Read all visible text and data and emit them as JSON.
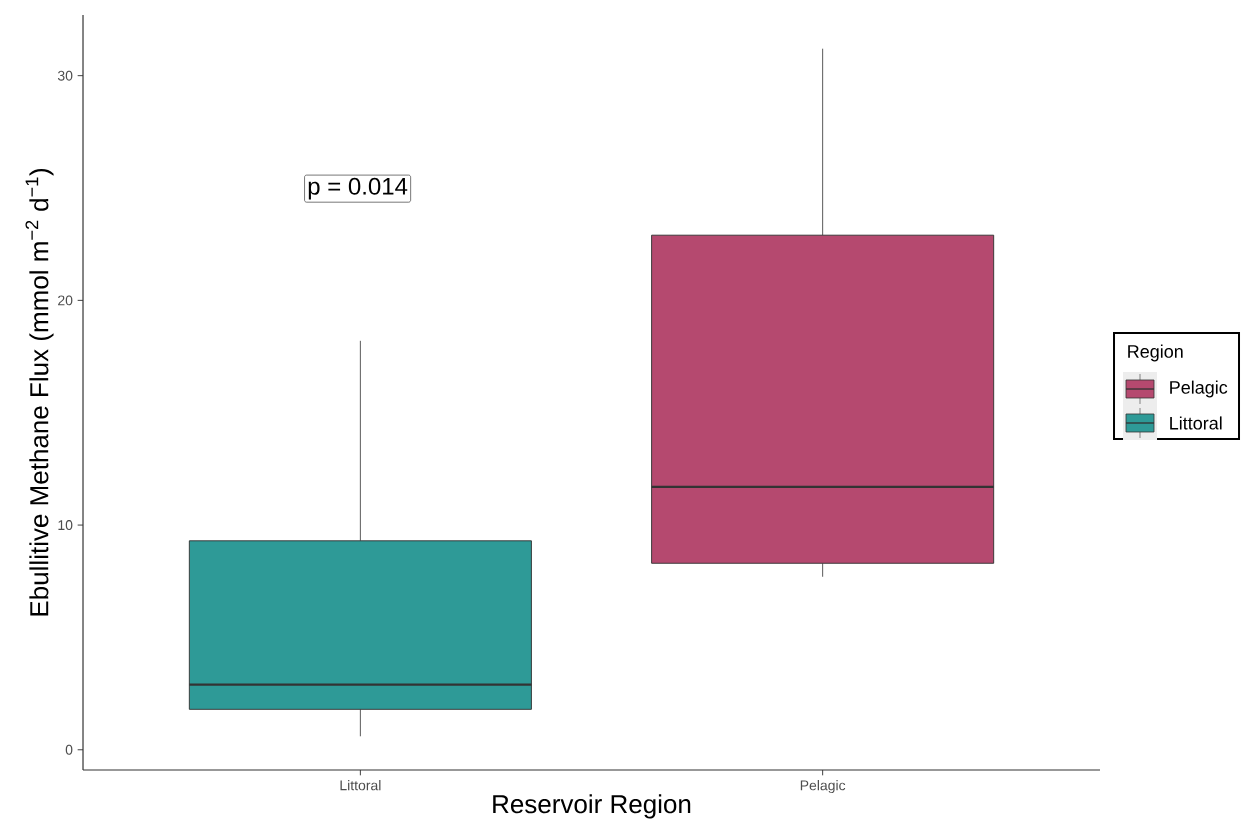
{
  "chart_data": {
    "type": "box",
    "categories": [
      "Littoral",
      "Pelagic"
    ],
    "series": [
      {
        "name": "Pelagic",
        "color": "#b5496f",
        "boxes": [
          null,
          {
            "low": 7.7,
            "q1": 8.3,
            "median": 11.7,
            "q3": 22.9,
            "high": 31.2
          }
        ]
      },
      {
        "name": "Littoral",
        "color": "#2e9a97",
        "boxes": [
          {
            "low": 0.6,
            "q1": 1.8,
            "median": 2.9,
            "q3": 9.3,
            "high": 18.2
          },
          null
        ]
      }
    ],
    "xlabel": "Reservoir Region",
    "ylabel": "Ebullitive Methane Flux (mmol m$^{−2}$ d$^{−1}$)",
    "legend_title": "Region",
    "legend": "right",
    "ylim": [
      -0.9,
      32.7
    ],
    "yticks": [
      0,
      10,
      20,
      30
    ],
    "annotations": [
      "p = 0.014"
    ]
  }
}
